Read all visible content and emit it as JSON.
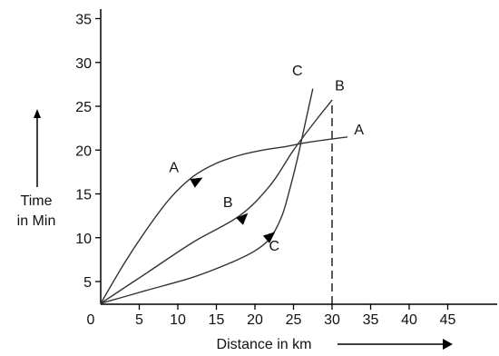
{
  "chart_data": {
    "type": "line",
    "title": "",
    "xlabel": "Distance in km",
    "ylabel": [
      "Time",
      "in Min"
    ],
    "x_ticks": [
      0,
      5,
      10,
      15,
      20,
      25,
      30,
      35,
      40,
      45
    ],
    "y_ticks": [
      5,
      10,
      15,
      20,
      25,
      30,
      35
    ],
    "xlim": [
      0,
      47
    ],
    "ylim": [
      2.5,
      35
    ],
    "grid": false,
    "axis_color": "#000000",
    "series": [
      {
        "name": "A",
        "color": "#333333",
        "points": [
          [
            0,
            2.5
          ],
          [
            3,
            7
          ],
          [
            6,
            11
          ],
          [
            9,
            14.5
          ],
          [
            12,
            17
          ],
          [
            15,
            18.5
          ],
          [
            18,
            19.4
          ],
          [
            21,
            20
          ],
          [
            24,
            20.4
          ],
          [
            27,
            20.9
          ],
          [
            32,
            21.5
          ]
        ],
        "arrow_at": [
          12.5,
          16.5
        ]
      },
      {
        "name": "B",
        "color": "#333333",
        "points": [
          [
            0,
            2.5
          ],
          [
            6,
            6
          ],
          [
            12,
            9.5
          ],
          [
            18,
            12.5
          ],
          [
            22,
            16
          ],
          [
            25,
            20
          ],
          [
            28,
            23.5
          ],
          [
            30,
            25.7
          ]
        ],
        "arrow_at": [
          18.5,
          12.3
        ]
      },
      {
        "name": "C",
        "color": "#333333",
        "points": [
          [
            0,
            2.5
          ],
          [
            6,
            4
          ],
          [
            12,
            5.5
          ],
          [
            17,
            7.2
          ],
          [
            20,
            8.5
          ],
          [
            22,
            10
          ],
          [
            23.5,
            12.5
          ],
          [
            24.5,
            15.5
          ],
          [
            25.5,
            19
          ],
          [
            26.5,
            23
          ],
          [
            27.5,
            27
          ]
        ],
        "arrow_at": [
          22,
          10.2
        ]
      }
    ],
    "curve_labels": [
      {
        "text": "A",
        "x": 9.5,
        "y": 17.5
      },
      {
        "text": "A",
        "x": 33.5,
        "y": 21.8
      },
      {
        "text": "B",
        "x": 16.5,
        "y": 13.5
      },
      {
        "text": "B",
        "x": 31,
        "y": 26.8
      },
      {
        "text": "C",
        "x": 22.5,
        "y": 8.5
      },
      {
        "text": "C",
        "x": 25.5,
        "y": 28.5
      }
    ],
    "dashed_reference": {
      "x": 30,
      "y_from": 2.5,
      "y_to": 25.7
    },
    "x_origin_label": "0"
  }
}
